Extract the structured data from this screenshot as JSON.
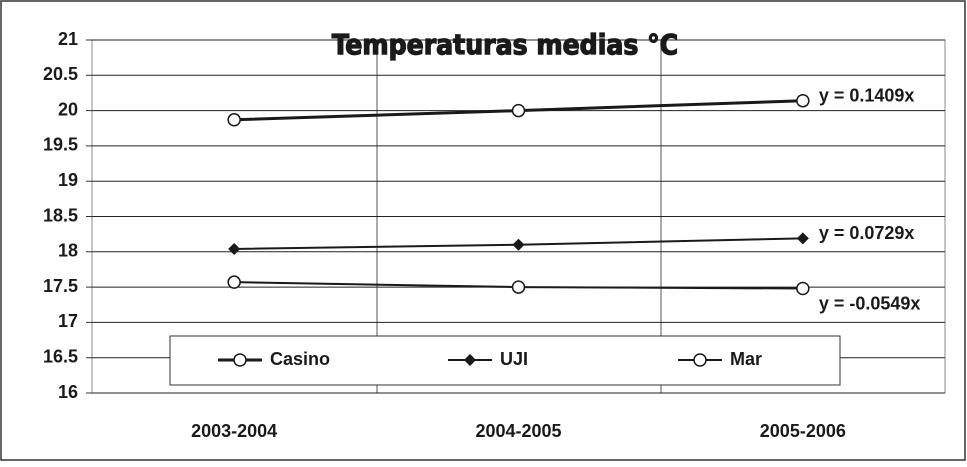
{
  "chart_data": {
    "type": "line",
    "title": "Temperaturas medias °C",
    "categories": [
      "2003-2004",
      "2004-2005",
      "2005-2006"
    ],
    "series": [
      {
        "name": "Casino",
        "color": "#1a1a1a",
        "marker": "circle",
        "line_width": 3,
        "values": [
          19.87,
          20.0,
          20.14
        ]
      },
      {
        "name": "UJI",
        "color": "#1a1a1a",
        "marker": "diamond",
        "line_width": 2,
        "values": [
          18.04,
          18.1,
          18.19
        ]
      },
      {
        "name": "Mar",
        "color": "#1a1a1a",
        "marker": "circle",
        "line_width": 2,
        "values": [
          17.57,
          17.5,
          17.48
        ]
      }
    ],
    "annotations": [
      "y = 0.1409x",
      "y = 0.0729x",
      "y = -0.0549x"
    ],
    "ylim": [
      16,
      21
    ],
    "yticks": [
      16,
      16.5,
      17,
      17.5,
      18,
      18.5,
      19,
      19.5,
      20,
      20.5,
      21
    ],
    "grid": true,
    "legend": "bottom"
  }
}
